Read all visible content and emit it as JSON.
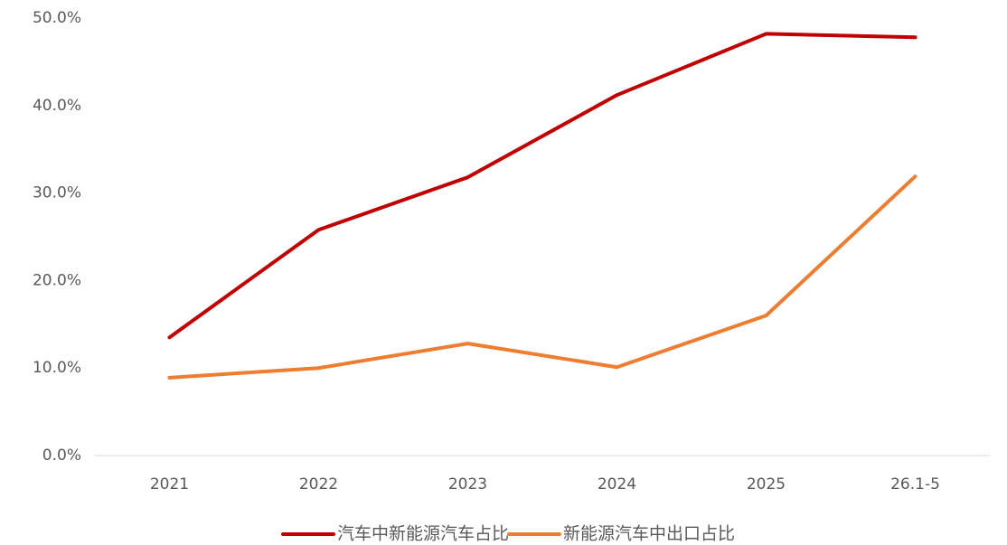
{
  "chart_data": {
    "type": "line",
    "categories": [
      "2021",
      "2022",
      "2023",
      "2024",
      "2025",
      "26.1-5"
    ],
    "series": [
      {
        "name": "汽车中新能源汽车占比",
        "color": "#c00000",
        "values": [
          13.5,
          25.8,
          31.8,
          41.2,
          48.2,
          47.8
        ]
      },
      {
        "name": "新能源汽车中出口占比",
        "color": "#ed7d31",
        "values": [
          8.9,
          10.0,
          12.8,
          10.1,
          16.0,
          31.9
        ]
      }
    ],
    "ylim": [
      0,
      50
    ],
    "yticks": [
      {
        "value": 0,
        "label": "0.0%"
      },
      {
        "value": 10,
        "label": "10.0%"
      },
      {
        "value": 20,
        "label": "20.0%"
      },
      {
        "value": 30,
        "label": "30.0%"
      },
      {
        "value": 40,
        "label": "40.0%"
      },
      {
        "value": 50,
        "label": "50.0%"
      }
    ],
    "grid": false,
    "legend": "bottom"
  }
}
